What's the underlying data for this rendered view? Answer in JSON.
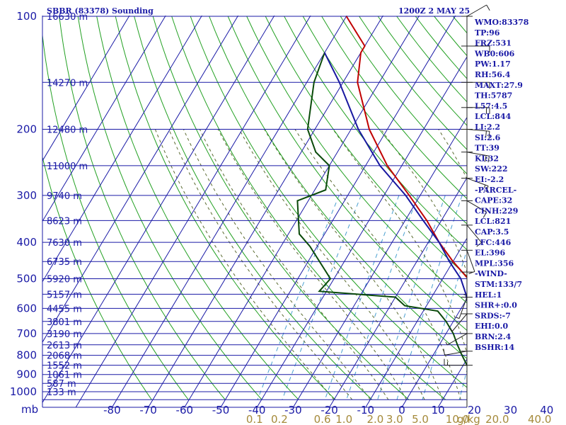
{
  "header": {
    "title": "SBBR (83378) Sounding",
    "time": "1200Z  2 MAY 25"
  },
  "colors": {
    "grid": "#1a1aa6",
    "dry_adiabat": "#22a022",
    "moist_adiabat": "#5a6a30",
    "mixing_ratio": "#4aa0d0",
    "temperature": "#c00000",
    "dewpoint": "#0a4a0a",
    "parcel": "#1818a0",
    "wind": "#222222"
  },
  "chart_data": {
    "type": "line",
    "title": "SBBR (83378) Sounding",
    "pressure_unit": "mb",
    "mixing_ratio_unit": "g/kg",
    "pressure_ticks": [
      "100",
      "200",
      "300",
      "400",
      "500",
      "600",
      "700",
      "800",
      "900",
      "1000"
    ],
    "temperature_ticks": [
      "-80",
      "-70",
      "-60",
      "-50",
      "-40",
      "-30",
      "-20",
      "-10",
      "0",
      "10",
      "20",
      "30",
      "40"
    ],
    "mixing_ratio_ticks": [
      "0.1",
      "0.2",
      "0.6",
      "1.0",
      "2.0",
      "3.0",
      "5.0",
      "10.0",
      "20.0",
      "40.0"
    ],
    "height_labels": [
      {
        "p": 100,
        "text": "16630 m"
      },
      {
        "p": 150,
        "text": "14270 m"
      },
      {
        "p": 200,
        "text": "12480 m"
      },
      {
        "p": 250,
        "text": "11000 m"
      },
      {
        "p": 300,
        "text": "9740 m"
      },
      {
        "p": 350,
        "text": "8623 m"
      },
      {
        "p": 400,
        "text": "7630 m"
      },
      {
        "p": 450,
        "text": "6735 m"
      },
      {
        "p": 500,
        "text": "5920 m"
      },
      {
        "p": 550,
        "text": "5157 m"
      },
      {
        "p": 600,
        "text": "4455 m"
      },
      {
        "p": 650,
        "text": "3801 m"
      },
      {
        "p": 700,
        "text": "3190 m"
      },
      {
        "p": 750,
        "text": "2613 m"
      },
      {
        "p": 800,
        "text": "2068 m"
      },
      {
        "p": 850,
        "text": "1552 m"
      },
      {
        "p": 900,
        "text": "1061 m"
      },
      {
        "p": 950,
        "text": "587 m"
      },
      {
        "p": 1000,
        "text": "133 m"
      }
    ],
    "series": [
      {
        "key": "temperature",
        "pressure": [
          100,
          120,
          125,
          150,
          200,
          250,
          300,
          350,
          400,
          450,
          500,
          530,
          550,
          600,
          650,
          700,
          750,
          800,
          850,
          880
        ],
        "temperature": [
          -80,
          -70,
          -70,
          -66,
          -55,
          -44,
          -33,
          -24,
          -17,
          -10,
          -3,
          3,
          1,
          3,
          8,
          11,
          13,
          15,
          17,
          19
        ]
      },
      {
        "key": "dewpoint",
        "pressure": [
          125,
          150,
          200,
          230,
          250,
          290,
          310,
          380,
          410,
          500,
          540,
          560,
          590,
          610,
          650,
          700,
          750,
          800,
          850,
          880
        ],
        "dewpoint": [
          -80,
          -78,
          -72,
          -66,
          -60,
          -57,
          -63,
          -57,
          -52,
          -41,
          -42,
          -20,
          -16,
          -6,
          -2,
          2,
          5,
          8,
          11,
          14
        ]
      },
      {
        "key": "parcel",
        "pressure": [
          125,
          150,
          200,
          250,
          300,
          350,
          400,
          450,
          500,
          550,
          600,
          650,
          700,
          750,
          800,
          850,
          890
        ],
        "temperature": [
          -80,
          -71,
          -58,
          -46,
          -34,
          -25,
          -17,
          -11,
          -5,
          -1,
          2,
          6,
          10,
          13,
          16,
          18,
          20
        ]
      }
    ],
    "wind_barbs": [
      {
        "p": 100,
        "dir": 300,
        "spd": 10
      },
      {
        "p": 120,
        "dir": 270,
        "spd": 10
      },
      {
        "p": 150,
        "dir": 270,
        "spd": 15
      },
      {
        "p": 175,
        "dir": 270,
        "spd": 20
      },
      {
        "p": 200,
        "dir": 265,
        "spd": 20
      },
      {
        "p": 230,
        "dir": 260,
        "spd": 20
      },
      {
        "p": 270,
        "dir": 250,
        "spd": 15
      },
      {
        "p": 310,
        "dir": 240,
        "spd": 15
      },
      {
        "p": 360,
        "dir": 220,
        "spd": 10
      },
      {
        "p": 420,
        "dir": 200,
        "spd": 10
      },
      {
        "p": 480,
        "dir": 180,
        "spd": 5
      },
      {
        "p": 560,
        "dir": 160,
        "spd": 5
      },
      {
        "p": 620,
        "dir": 140,
        "spd": 5
      },
      {
        "p": 700,
        "dir": 120,
        "spd": 5
      },
      {
        "p": 780,
        "dir": 100,
        "spd": 10
      },
      {
        "p": 850,
        "dir": 90,
        "spd": 15
      }
    ]
  },
  "indices": [
    "WMO:83378",
    "TP:96",
    "FRZ:531",
    "WB0:606",
    "PW:1.17",
    "RH:56.4",
    "MAXT:27.9",
    "TH:5787",
    "L57:4.5",
    "LCL:844",
    "LI:2.2",
    "SI:2.6",
    "TT:39",
    "KI:32",
    "SW:222",
    "EI:-2.2",
    "-PARCEL-",
    "CAPE:32",
    "CINH:229",
    "LCL:821",
    "CAP:3.5",
    "LFC:446",
    "EL:396",
    "MPL:356",
    "-WIND-",
    "STM:133/7",
    "HEL:1",
    "SHR+:0.0",
    "SRDS:-7",
    "EHI:0.0",
    "BRN:2.4",
    "BSHR:14"
  ]
}
